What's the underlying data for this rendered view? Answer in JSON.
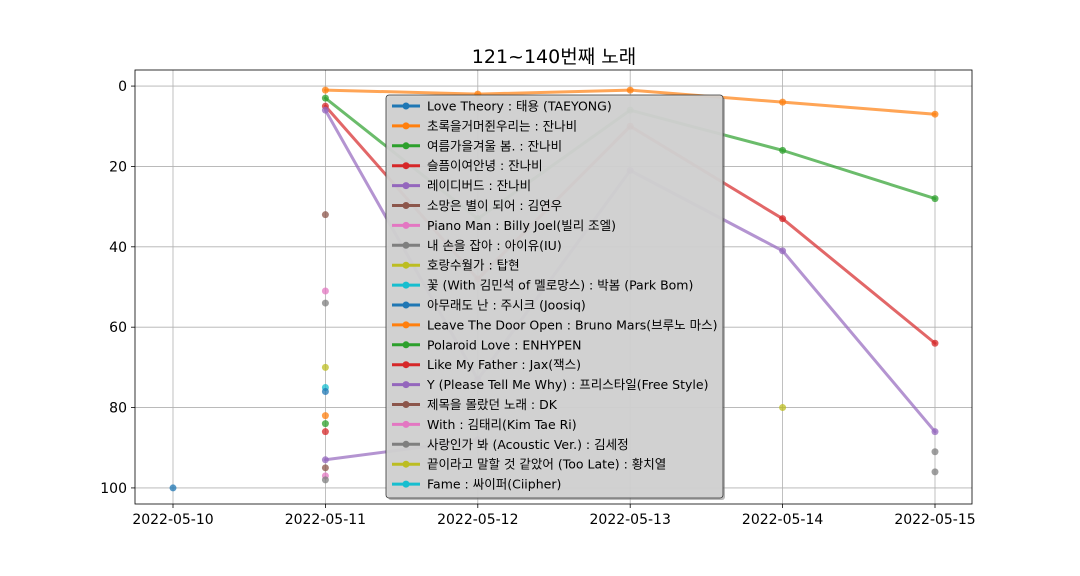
{
  "chart_data": {
    "type": "line",
    "title": "121~140번째 노래",
    "xlabel": "",
    "ylabel": "",
    "x": [
      "2022-05-10",
      "2022-05-11",
      "2022-05-12",
      "2022-05-13",
      "2022-05-14",
      "2022-05-15"
    ],
    "ylim": [
      104,
      -4
    ],
    "y_inverted": true,
    "yticks": [
      0,
      20,
      40,
      60,
      80,
      100
    ],
    "grid": true,
    "legend_position": "center",
    "series": [
      {
        "name": "Love Theory : 태용 (TAEYONG)",
        "color": "#1f77b4",
        "values": [
          100,
          null,
          null,
          null,
          null,
          null
        ]
      },
      {
        "name": "초록을거머쥔우리는 : 잔나비",
        "color": "#ff7f0e",
        "values": [
          null,
          1,
          2,
          1,
          4,
          7
        ]
      },
      {
        "name": "여름가을겨울  봄. : 잔나비",
        "color": "#2ca02c",
        "values": [
          null,
          3,
          33,
          6,
          16,
          28
        ]
      },
      {
        "name": "슬픔이여안녕 : 잔나비",
        "color": "#d62728",
        "values": [
          null,
          5,
          48,
          10,
          33,
          64
        ]
      },
      {
        "name": "레이디버드 : 잔나비",
        "color": "#9467bd",
        "values": [
          null,
          6,
          73,
          21,
          41,
          86
        ]
      },
      {
        "name": "소망은 별이 되어 : 김연우",
        "color": "#8c564b",
        "values": [
          null,
          32,
          null,
          null,
          null,
          null
        ]
      },
      {
        "name": "Piano Man : Billy Joel(빌리 조엘)",
        "color": "#e377c2",
        "values": [
          null,
          51,
          null,
          null,
          null,
          null
        ]
      },
      {
        "name": "내 손을 잡아 : 아이유(IU)",
        "color": "#7f7f7f",
        "values": [
          null,
          54,
          null,
          null,
          null,
          91
        ]
      },
      {
        "name": "호랑수월가 : 탑현",
        "color": "#bcbd22",
        "values": [
          null,
          70,
          null,
          null,
          80,
          null
        ]
      },
      {
        "name": "꽃 (With 김민석 of 멜로망스) : 박봄 (Park Bom)",
        "color": "#17becf",
        "values": [
          null,
          75,
          null,
          null,
          null,
          null
        ]
      },
      {
        "name": "아무래도 난 : 주시크 (Joosiq)",
        "color": "#1f77b4",
        "values": [
          null,
          76,
          null,
          null,
          null,
          null
        ]
      },
      {
        "name": "Leave The Door Open : Bruno Mars(브루노 마스)",
        "color": "#ff7f0e",
        "values": [
          null,
          82,
          null,
          null,
          null,
          null
        ]
      },
      {
        "name": "Polaroid Love : ENHYPEN",
        "color": "#2ca02c",
        "values": [
          null,
          84,
          null,
          null,
          null,
          null
        ]
      },
      {
        "name": "Like My Father : Jax(잭스)",
        "color": "#d62728",
        "values": [
          null,
          86,
          null,
          null,
          null,
          null
        ]
      },
      {
        "name": "Y (Please Tell Me Why) : 프리스타일(Free Style)",
        "color": "#9467bd",
        "values": [
          null,
          93,
          88,
          null,
          null,
          null
        ]
      },
      {
        "name": "제목을 몰랐던 노래 : DK",
        "color": "#8c564b",
        "values": [
          null,
          95,
          null,
          null,
          null,
          null
        ]
      },
      {
        "name": "With : 김태리(Kim Tae Ri)",
        "color": "#e377c2",
        "values": [
          null,
          97,
          null,
          null,
          null,
          null
        ]
      },
      {
        "name": "사랑인가 봐 (Acoustic Ver.) : 김세정",
        "color": "#7f7f7f",
        "values": [
          null,
          98,
          null,
          null,
          null,
          96
        ]
      },
      {
        "name": "끝이라고 말할 것 같았어 (Too Late) : 황치열",
        "color": "#bcbd22",
        "values": [
          null,
          null,
          null,
          null,
          null,
          null
        ]
      },
      {
        "name": "Fame : 싸이퍼(Ciipher)",
        "color": "#17becf",
        "values": [
          null,
          null,
          null,
          null,
          null,
          null
        ]
      }
    ]
  }
}
